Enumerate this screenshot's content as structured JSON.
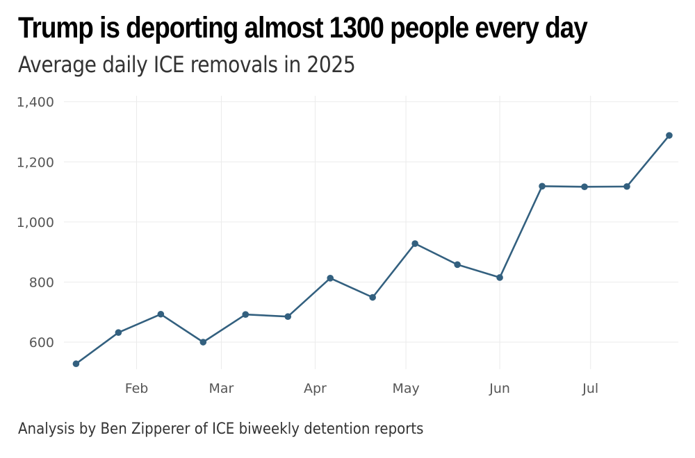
{
  "chart_data": {
    "type": "line",
    "title": "Trump is deporting almost 1300 people every day",
    "subtitle": "Average daily ICE removals in 2025",
    "caption": "Analysis by Ben Zipperer of ICE biweekly detention reports",
    "xlabel": "",
    "ylabel": "",
    "ylim": [
      510,
      1420
    ],
    "y_ticks": [
      600,
      800,
      1000,
      1200,
      1400
    ],
    "y_tick_labels": [
      "600",
      "800",
      "1,000",
      "1,200",
      "1,400"
    ],
    "x_ticks": [
      32,
      60,
      91,
      121,
      152,
      182
    ],
    "x_tick_labels": [
      "Feb",
      "Mar",
      "Apr",
      "May",
      "Jun",
      "Jul"
    ],
    "xlim": [
      8,
      211
    ],
    "grid": true,
    "series": [
      {
        "name": "Average daily ICE removals",
        "color": "#33607f",
        "x": [
          12,
          26,
          40,
          54,
          68,
          82,
          96,
          110,
          124,
          138,
          152,
          166,
          180,
          194,
          208
        ],
        "values": [
          528,
          632,
          693,
          600,
          692,
          685,
          813,
          749,
          928,
          858,
          815,
          1119,
          1117,
          1118,
          1288
        ]
      }
    ]
  }
}
